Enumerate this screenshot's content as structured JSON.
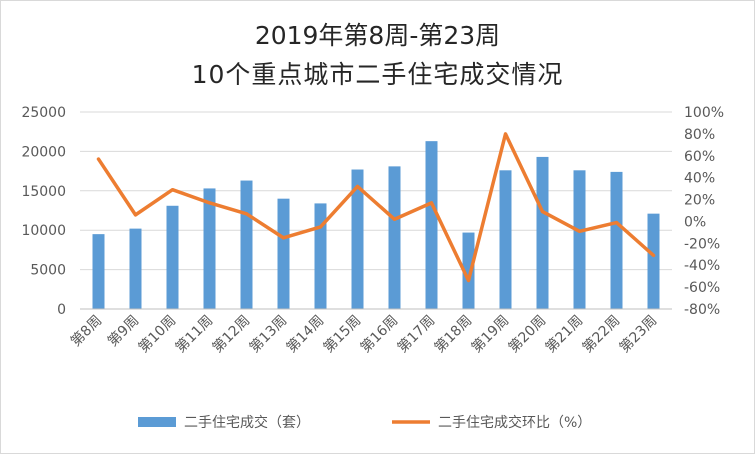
{
  "chart_data": {
    "type": "bar",
    "title": "2019年第8周-第23周",
    "subtitle": "10个重点城市二手住宅成交情况",
    "categories": [
      "第8周",
      "第9周",
      "第10周",
      "第11周",
      "第12周",
      "第13周",
      "第14周",
      "第15周",
      "第16周",
      "第17周",
      "第18周",
      "第19周",
      "第20周",
      "第21周",
      "第22周",
      "第23周"
    ],
    "series": [
      {
        "name": "二手住宅成交（套）",
        "type": "bar",
        "axis": "left",
        "color": "#5b9bd5",
        "values": [
          9500,
          10200,
          13100,
          15300,
          16300,
          14000,
          13400,
          17700,
          18100,
          21300,
          9700,
          17600,
          19300,
          17600,
          17400,
          12100
        ]
      },
      {
        "name": "二手住宅成交环比（%）",
        "type": "line",
        "axis": "right",
        "color": "#ed7d31",
        "values": [
          57,
          6,
          29,
          17,
          7,
          -15,
          -5,
          32,
          2,
          17,
          -54,
          80,
          9,
          -9,
          -1,
          -31
        ]
      }
    ],
    "y_left": {
      "ylim": [
        0,
        25000
      ],
      "ticks": [
        "0",
        "5000",
        "10000",
        "15000",
        "20000",
        "25000"
      ]
    },
    "y_right": {
      "ylim": [
        -80,
        100
      ],
      "ticks": [
        "-80%",
        "-60%",
        "-40%",
        "-20%",
        "0%",
        "20%",
        "40%",
        "60%",
        "80%",
        "100%"
      ]
    },
    "grid": true,
    "legend": "bottom"
  }
}
